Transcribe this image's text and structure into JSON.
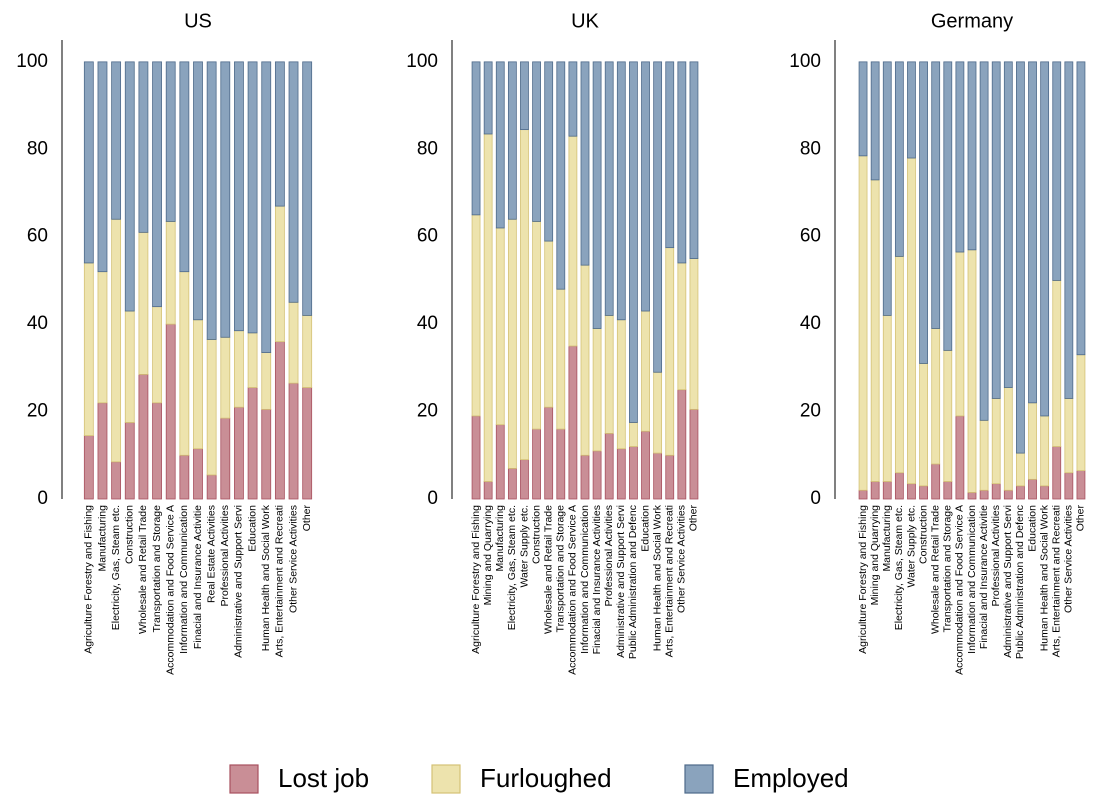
{
  "chart_data": [
    {
      "type": "bar",
      "stacked": true,
      "title": "US",
      "categories": [
        "Agriculture Forestry and Fishing",
        "Manufacturing",
        "Electricity, Gas, Steam etc.",
        "Construction",
        "Wholesale and Retail Trade",
        "Transportation and Storage",
        "Accommodation and Food Service A",
        "Information and Communication",
        "Finacial and Insurance Activitie",
        "Real Estate Activities",
        "Professional Activities",
        "Administrative and Support Servi",
        "Education",
        "Human Health and Social Work",
        "Arts, Entertainment and Recreati",
        "Other Service Activities",
        "Other"
      ],
      "series": [
        {
          "name": "Lost job",
          "color": "#c98e96",
          "values": [
            14.5,
            22,
            8.5,
            17.5,
            28.5,
            22,
            40,
            10,
            11.5,
            5.5,
            18.5,
            21,
            25.5,
            20.5,
            36,
            26.5,
            25.5
          ]
        },
        {
          "name": "Furloughed",
          "color": "#ede3ad",
          "values": [
            39.5,
            30,
            55.5,
            25.5,
            32.5,
            22,
            23.5,
            42,
            29.5,
            31,
            18.5,
            17.5,
            12.5,
            13,
            31,
            18.5,
            16.5
          ]
        },
        {
          "name": "Employed",
          "color": "#8aa3bd",
          "values": [
            46,
            48,
            36,
            57,
            39,
            56,
            36.5,
            48,
            59,
            63.5,
            63,
            61.5,
            62,
            66.5,
            33,
            55,
            58
          ]
        }
      ],
      "ylim": [
        0,
        105
      ],
      "yticks": [
        0,
        20,
        40,
        60,
        80,
        100
      ]
    },
    {
      "type": "bar",
      "stacked": true,
      "title": "UK",
      "categories": [
        "Agriculture Forestry and Fishing",
        "Mining and Quarrying",
        "Manufacturing",
        "Electricity, Gas, Steam etc.",
        "Water Supply etc.",
        "Construction",
        "Wholesale and Retail Trade",
        "Transportation and Storage",
        "Accommodation and Food Service A",
        "Information and Communication",
        "Finacial and Insurance Activities",
        "Professional Activities",
        "Administrative and Support Servi",
        "Public Administration and Defenc",
        "Education",
        "Human Health and Social Work",
        "Arts, Entertainment and Recreati",
        "Other Service Activities",
        "Other"
      ],
      "series": [
        {
          "name": "Lost job",
          "color": "#c98e96",
          "values": [
            19,
            4,
            17,
            7,
            9,
            16,
            21,
            16,
            35,
            10,
            11,
            15,
            11.5,
            12,
            15.5,
            10.5,
            10,
            25,
            20.5
          ]
        },
        {
          "name": "Furloughed",
          "color": "#ede3ad",
          "values": [
            46,
            79.5,
            45,
            57,
            75.5,
            47.5,
            38,
            32,
            48,
            43.5,
            28,
            27,
            29.5,
            5.5,
            27.5,
            18.5,
            47.5,
            29,
            34.5
          ]
        },
        {
          "name": "Employed",
          "color": "#8aa3bd",
          "values": [
            35,
            16.5,
            38,
            36,
            15.5,
            36.5,
            41,
            52,
            17,
            46.5,
            61,
            58,
            59,
            82.5,
            57,
            71,
            42.5,
            46,
            45
          ]
        }
      ],
      "ylim": [
        0,
        105
      ],
      "yticks": [
        0,
        20,
        40,
        60,
        80,
        100
      ]
    },
    {
      "type": "bar",
      "stacked": true,
      "title": "Germany",
      "categories": [
        "Agriculture Forestry and Fishing",
        "Mining and Quarrying",
        "Manufacturing",
        "Electricity, Gas, Steam etc.",
        "Water Supply etc.",
        "Construction",
        "Wholesale and Retail Trade",
        "Transportation and Storage",
        "Accommodation and Food Service A",
        "Information and Communication",
        "Finacial and Insurance Activitie",
        "Professional Activities",
        "Administrative and Support Servi",
        "Public Administration and Defenc",
        "Education",
        "Human Health and Social Work",
        "Arts, Entertainment and Recreati",
        "Other Service Activities",
        "Other"
      ],
      "series": [
        {
          "name": "Lost job",
          "color": "#c98e96",
          "values": [
            2,
            4,
            4,
            6,
            3.5,
            3,
            8,
            4,
            19,
            1.5,
            2,
            3.5,
            2,
            3,
            4.5,
            3,
            12,
            6,
            6.5
          ]
        },
        {
          "name": "Furloughed",
          "color": "#ede3ad",
          "values": [
            76.5,
            69,
            38,
            49.5,
            74.5,
            28,
            31,
            30,
            37.5,
            55.5,
            16,
            19.5,
            23.5,
            7.5,
            17.5,
            16,
            38,
            17,
            26.5
          ]
        },
        {
          "name": "Employed",
          "color": "#8aa3bd",
          "values": [
            21.5,
            27,
            58,
            44.5,
            22,
            69,
            61,
            66,
            43.5,
            43,
            82,
            77,
            74.5,
            89.5,
            78,
            81,
            50,
            77,
            67
          ]
        }
      ],
      "ylim": [
        0,
        105
      ],
      "yticks": [
        0,
        20,
        40,
        60,
        80,
        100
      ]
    }
  ]
}
